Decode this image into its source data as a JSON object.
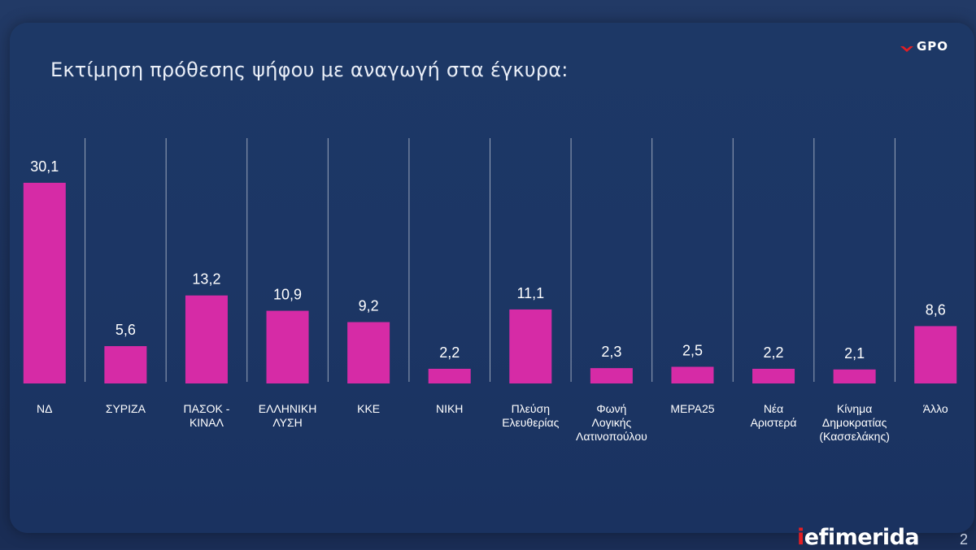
{
  "header": {
    "title": "Εκτίμηση πρόθεσης ψήφου με αναγωγή στα έγκυρα:",
    "logo_text": "GPO"
  },
  "footer": {
    "brand_i": "i",
    "brand_rest": "efimerida",
    "page_number": "2"
  },
  "colors": {
    "bar": "#d62ba6",
    "grid": "#ffffff",
    "label": "#ffffff",
    "value": "#ffffff",
    "brand_red": "#e31e24"
  },
  "chart_data": {
    "type": "bar",
    "title": "Εκτίμηση πρόθεσης ψήφου με αναγωγή στα έγκυρα:",
    "xlabel": "",
    "ylabel": "",
    "ylim": [
      0,
      30.1
    ],
    "grid": "vertical separators",
    "categories": [
      [
        "ΝΔ"
      ],
      [
        "ΣΥΡΙΖΑ"
      ],
      [
        "ΠΑΣΟΚ -",
        "ΚΙΝΑΛ"
      ],
      [
        "ΕΛΛΗΝΙΚΗ",
        "ΛΥΣΗ"
      ],
      [
        "ΚΚΕ"
      ],
      [
        "ΝΙΚΗ"
      ],
      [
        "Πλεύση",
        "Ελευθερίας"
      ],
      [
        "Φωνή",
        "Λογικής",
        "Λατινοπούλου"
      ],
      [
        "ΜΕΡΑ25"
      ],
      [
        "Νέα",
        "Αριστερά"
      ],
      [
        "Κίνημα",
        "Δημοκρατίας",
        "(Κασσελάκης)"
      ],
      [
        "Άλλο"
      ]
    ],
    "values": [
      30.1,
      5.6,
      13.2,
      10.9,
      9.2,
      2.2,
      11.1,
      2.3,
      2.5,
      2.2,
      2.1,
      8.6
    ],
    "value_labels": [
      "30,1",
      "5,6",
      "13,2",
      "10,9",
      "9,2",
      "2,2",
      "11,1",
      "2,3",
      "2,5",
      "2,2",
      "2,1",
      "8,6"
    ]
  }
}
